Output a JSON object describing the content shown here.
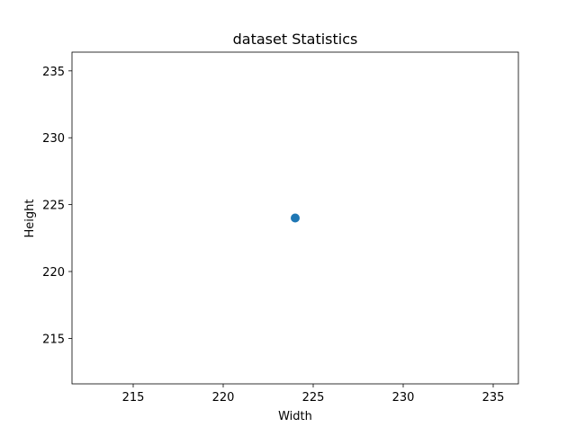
{
  "chart_data": {
    "type": "scatter",
    "title": "dataset Statistics",
    "xlabel": "Width",
    "ylabel": "Height",
    "xlim": [
      211.6,
      236.4
    ],
    "ylim": [
      211.6,
      236.4
    ],
    "xticks": [
      215,
      220,
      225,
      230,
      235
    ],
    "yticks": [
      215,
      220,
      225,
      230,
      235
    ],
    "grid": false,
    "series": [
      {
        "color": "#1f77b4",
        "points": [
          {
            "x": 224,
            "y": 224
          }
        ]
      }
    ]
  }
}
